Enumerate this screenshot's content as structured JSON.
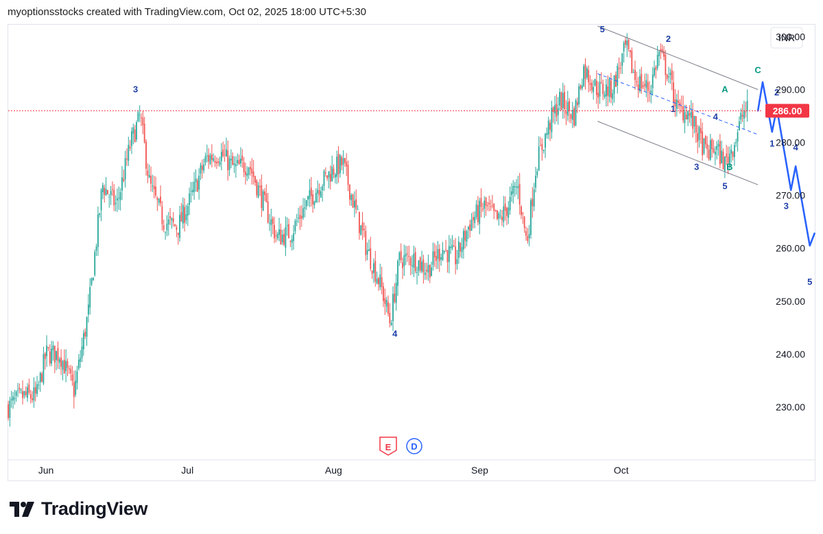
{
  "header": {
    "title": "myoptionsstocks created with TradingView.com, Oct 02, 2025 18:00 UTC+5:30"
  },
  "currency_button": "INR",
  "last_price_label": "286.00",
  "events": {
    "earnings_icon": "E",
    "dividend_icon": "D"
  },
  "footer": {
    "logo_text": "TradingView"
  },
  "colors": {
    "up": "#26a69a",
    "down": "#ef5350",
    "wave": "#2962ff",
    "wave_text": "#1d3fa8",
    "corrective": "#089981",
    "price_line": "#f23645",
    "channel": "#787b86"
  },
  "chart_data": {
    "type": "candlestick",
    "ylim": [
      220,
      302
    ],
    "y_ticks": [
      "230.00",
      "240.00",
      "250.00",
      "260.00",
      "270.00",
      "280.00",
      "290.00",
      "300.00"
    ],
    "y_tick_values": [
      230,
      240,
      250,
      260,
      270,
      280,
      290,
      300
    ],
    "x_ticks": [
      {
        "label": "Jun",
        "date": "2025-06-01"
      },
      {
        "label": "Jul",
        "date": "2025-07-01"
      },
      {
        "label": "Aug",
        "date": "2025-08-01"
      },
      {
        "label": "Sep",
        "date": "2025-09-01"
      },
      {
        "label": "Oct",
        "date": "2025-10-01"
      }
    ],
    "x_range": [
      "2025-05-24",
      "2025-10-31"
    ],
    "price_path": [
      [
        "2025-05-24",
        230
      ],
      [
        "2025-05-27",
        232
      ],
      [
        "2025-05-30",
        232
      ],
      [
        "2025-06-01",
        240
      ],
      [
        "2025-06-04",
        240
      ],
      [
        "2025-06-07",
        233
      ],
      [
        "2025-06-10",
        248
      ],
      [
        "2025-06-13",
        272
      ],
      [
        "2025-06-16",
        268
      ],
      [
        "2025-06-19",
        280
      ],
      [
        "2025-06-21",
        285
      ],
      [
        "2025-06-23",
        272
      ],
      [
        "2025-06-26",
        265
      ],
      [
        "2025-06-29",
        264
      ],
      [
        "2025-07-02",
        270
      ],
      [
        "2025-07-05",
        277
      ],
      [
        "2025-07-08",
        278
      ],
      [
        "2025-07-11",
        275
      ],
      [
        "2025-07-14",
        276
      ],
      [
        "2025-07-17",
        269
      ],
      [
        "2025-07-20",
        262
      ],
      [
        "2025-07-23",
        263
      ],
      [
        "2025-07-26",
        268
      ],
      [
        "2025-07-29",
        272
      ],
      [
        "2025-08-01",
        275
      ],
      [
        "2025-08-03",
        276
      ],
      [
        "2025-08-06",
        266
      ],
      [
        "2025-08-08",
        260
      ],
      [
        "2025-08-11",
        253
      ],
      [
        "2025-08-13",
        246
      ],
      [
        "2025-08-15",
        258
      ],
      [
        "2025-08-18",
        258
      ],
      [
        "2025-08-21",
        256
      ],
      [
        "2025-08-24",
        260
      ],
      [
        "2025-08-27",
        258
      ],
      [
        "2025-08-30",
        265
      ],
      [
        "2025-09-02",
        268
      ],
      [
        "2025-09-05",
        265
      ],
      [
        "2025-09-07",
        268
      ],
      [
        "2025-09-09",
        272
      ],
      [
        "2025-09-11",
        261
      ],
      [
        "2025-09-13",
        276
      ],
      [
        "2025-09-16",
        284
      ],
      [
        "2025-09-18",
        288
      ],
      [
        "2025-09-21",
        285
      ],
      [
        "2025-09-23",
        294
      ],
      [
        "2025-09-26",
        290
      ],
      [
        "2025-09-29",
        290
      ],
      [
        "2025-10-02",
        298
      ],
      [
        "2025-10-04",
        292
      ],
      [
        "2025-10-07",
        290
      ],
      [
        "2025-10-09",
        297
      ],
      [
        "2025-10-11",
        293
      ],
      [
        "2025-10-13",
        286
      ],
      [
        "2025-10-15",
        286
      ],
      [
        "2025-10-17",
        282
      ],
      [
        "2025-10-19",
        278
      ],
      [
        "2025-10-21",
        279
      ],
      [
        "2025-10-23",
        276
      ],
      [
        "2025-10-25",
        280
      ],
      [
        "2025-10-27",
        286
      ],
      [
        "2025-10-28",
        286
      ]
    ],
    "annotations": [
      {
        "text": "3",
        "date": "2025-06-20",
        "price": 289.5,
        "style": "wave"
      },
      {
        "text": "4",
        "date": "2025-08-14",
        "price": 243.3,
        "style": "wave"
      },
      {
        "text": "5",
        "date": "2025-09-27",
        "price": 300.8,
        "style": "wave"
      },
      {
        "text": "2",
        "date": "2025-10-11",
        "price": 299.0,
        "style": "wave"
      },
      {
        "text": "1",
        "date": "2025-10-12",
        "price": 285.8,
        "style": "wave"
      },
      {
        "text": "4",
        "date": "2025-10-21",
        "price": 284.3,
        "style": "wave"
      },
      {
        "text": "3",
        "date": "2025-10-17",
        "price": 274.8,
        "style": "wave"
      },
      {
        "text": "5",
        "date": "2025-10-23",
        "price": 271.2,
        "style": "wave"
      },
      {
        "text": "A",
        "date": "2025-10-23",
        "price": 289.5,
        "style": "corrective"
      },
      {
        "text": "B",
        "date": "2025-10-24",
        "price": 274.8,
        "style": "corrective"
      },
      {
        "text": "C",
        "date": "2025-10-30",
        "price": 293.1,
        "style": "corrective"
      },
      {
        "text": "1",
        "date": "2025-11-02",
        "price": 279.2,
        "style": "wave"
      },
      {
        "text": "2",
        "date": "2025-11-03",
        "price": 288.9,
        "style": "wave"
      },
      {
        "text": "4",
        "date": "2025-11-07",
        "price": 278.5,
        "style": "wave"
      },
      {
        "text": "3",
        "date": "2025-11-05",
        "price": 267.4,
        "style": "wave"
      },
      {
        "text": "5",
        "date": "2025-11-10",
        "price": 253.1,
        "style": "wave"
      }
    ],
    "channel": {
      "upper": [
        [
          "2025-09-26",
          302.0
        ],
        [
          "2025-10-30",
          290.0
        ]
      ],
      "lower": [
        [
          "2025-09-26",
          284.0
        ],
        [
          "2025-10-30",
          272.0
        ]
      ],
      "mid": [
        [
          "2025-09-26",
          293.0
        ],
        [
          "2025-10-30",
          281.5
        ]
      ]
    },
    "projection": [
      [
        "2025-10-30",
        286.0
      ],
      [
        "2025-10-31",
        291.4
      ],
      [
        "2025-11-02",
        282.0
      ],
      [
        "2025-11-03",
        286.5
      ],
      [
        "2025-11-06",
        271.0
      ],
      [
        "2025-11-07",
        275.5
      ],
      [
        "2025-11-10",
        260.5
      ],
      [
        "2025-11-11",
        262.8
      ]
    ],
    "last_price": 286.0
  }
}
